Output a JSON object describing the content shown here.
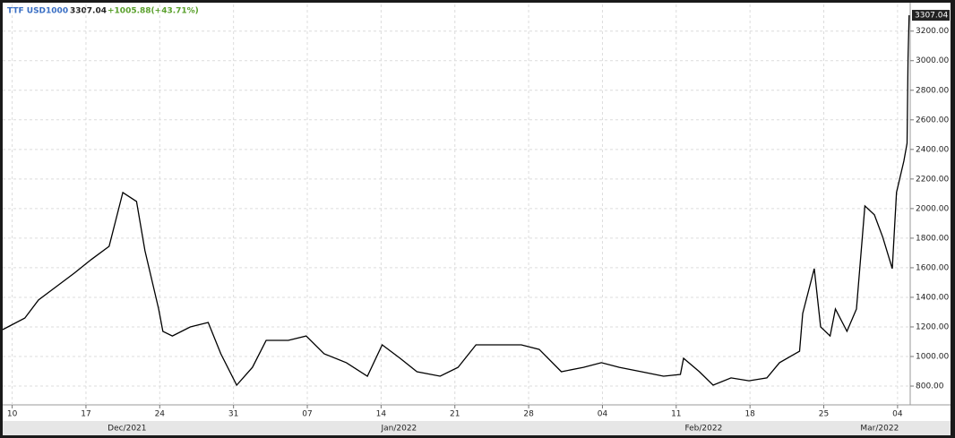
{
  "chart_data": {
    "type": "line",
    "last_label": "3307.04",
    "change_label": "+1005.88(+43.71%)",
    "x": [
      -0.9,
      1.2,
      2.5,
      4.2,
      5.9,
      7.5,
      9.2,
      10.5,
      11.8,
      12.6,
      13.9,
      14.3,
      15.2,
      16.9,
      18.6,
      19.8,
      21.3,
      22.8,
      24.1,
      26.2,
      27.9,
      29.6,
      31.7,
      33.7,
      35.1,
      36.8,
      38.4,
      40.6,
      42.3,
      44.0,
      46.1,
      48.3,
      50.0,
      52.1,
      54.2,
      55.9,
      57.6,
      59.7,
      61.8,
      63.4,
      63.7,
      65.2,
      66.5,
      68.2,
      69.9,
      71.6,
      72.8,
      74.7,
      75.0,
      76.1,
      76.7,
      77.6,
      78.1,
      79.2,
      80.1,
      80.9,
      81.8,
      82.6,
      83.5,
      83.9,
      84.6,
      84.9,
      85.0,
      85.1
    ],
    "series": [
      {
        "name": "TTF USD1000",
        "color": "#000000",
        "values": [
          1182,
          1260,
          1382,
          1473,
          1564,
          1655,
          1745,
          2109,
          2048,
          1715,
          1321,
          1170,
          1139,
          1200,
          1230,
          1018,
          806,
          927,
          1109,
          1109,
          1139,
          1018,
          958,
          867,
          1079,
          988,
          897,
          867,
          927,
          1079,
          1079,
          1079,
          1048,
          897,
          927,
          958,
          927,
          897,
          867,
          879,
          988,
          897,
          806,
          855,
          836,
          855,
          958,
          1036,
          1291,
          1594,
          1200,
          1139,
          1321,
          1170,
          1321,
          2018,
          1958,
          1806,
          1594,
          2109,
          2321,
          2442,
          3018,
          3307.04
        ]
      }
    ],
    "xlim": [
      -0.9,
      85.2
    ],
    "ylim": [
      673,
      3380
    ],
    "xticks": [
      {
        "value": 0,
        "label": "10"
      },
      {
        "value": 7,
        "label": "17"
      },
      {
        "value": 14,
        "label": "24"
      },
      {
        "value": 21,
        "label": "31"
      },
      {
        "value": 28,
        "label": "07"
      },
      {
        "value": 35,
        "label": "14"
      },
      {
        "value": 42,
        "label": "21"
      },
      {
        "value": 49,
        "label": "28"
      },
      {
        "value": 56,
        "label": "04"
      },
      {
        "value": 63,
        "label": "11"
      },
      {
        "value": 70,
        "label": "18"
      },
      {
        "value": 77,
        "label": "25"
      },
      {
        "value": 84,
        "label": "04"
      }
    ],
    "month_ticks": [
      {
        "value": 10.9,
        "label": "Dec/2021"
      },
      {
        "value": 36.7,
        "label": "Jan/2022"
      },
      {
        "value": 65.6,
        "label": "Feb/2022"
      },
      {
        "value": 82.3,
        "label": "Mar/2022"
      }
    ],
    "yticks": [
      {
        "value": 800,
        "label": "800.00"
      },
      {
        "value": 1000,
        "label": "1000.00"
      },
      {
        "value": 1200,
        "label": "1200.00"
      },
      {
        "value": 1400,
        "label": "1400.00"
      },
      {
        "value": 1600,
        "label": "1600.00"
      },
      {
        "value": 1800,
        "label": "1800.00"
      },
      {
        "value": 2000,
        "label": "2000.00"
      },
      {
        "value": 2200,
        "label": "2200.00"
      },
      {
        "value": 2400,
        "label": "2400.00"
      },
      {
        "value": 2600,
        "label": "2600.00"
      },
      {
        "value": 2800,
        "label": "2800.00"
      },
      {
        "value": 3000,
        "label": "3000.00"
      },
      {
        "value": 3200,
        "label": "3200.00"
      }
    ],
    "grid": true
  }
}
